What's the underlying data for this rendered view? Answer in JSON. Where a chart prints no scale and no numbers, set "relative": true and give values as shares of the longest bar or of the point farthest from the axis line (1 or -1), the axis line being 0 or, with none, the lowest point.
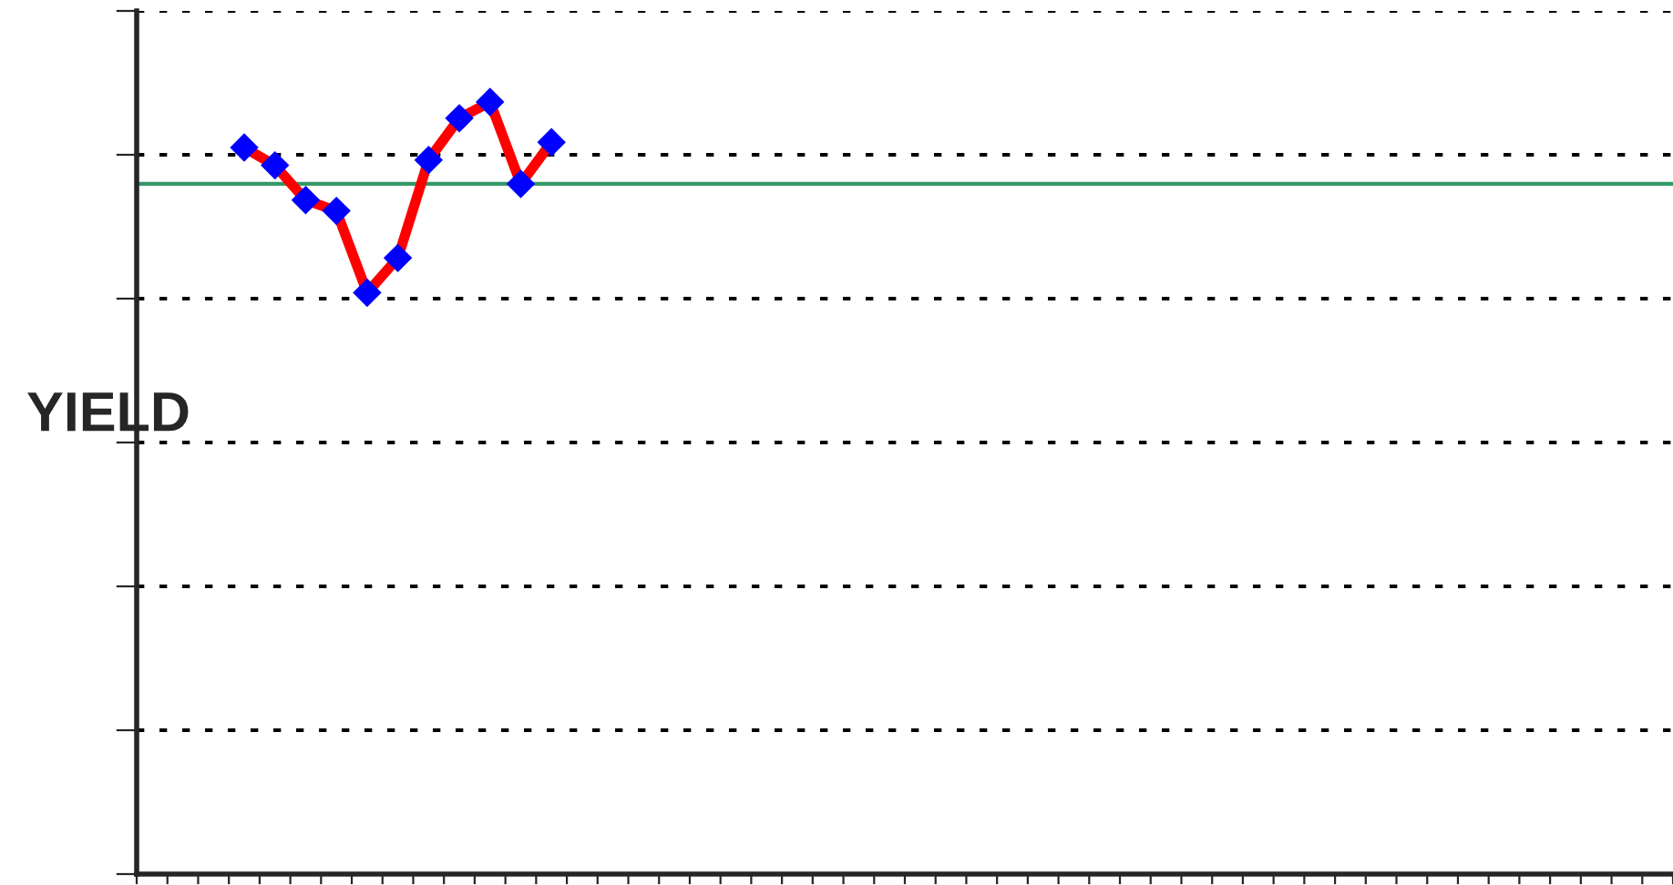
{
  "chart_data": {
    "type": "line",
    "ylabel": "YIELD",
    "relative": true,
    "categories": [
      null,
      null,
      null,
      null,
      null,
      null,
      null,
      null,
      null,
      null,
      null,
      null,
      null,
      null,
      null,
      null,
      null,
      null,
      null,
      null,
      null,
      null,
      null,
      null,
      null,
      null,
      null,
      null,
      null,
      null,
      null,
      null,
      null,
      null,
      null,
      null,
      null,
      null,
      null,
      null,
      null,
      null,
      null,
      null,
      null,
      null,
      null,
      null,
      null,
      null
    ],
    "series": [
      {
        "color": "#ff0000",
        "values": [
          null,
          null,
          null,
          0.941,
          0.918,
          0.873,
          0.859,
          0.753,
          0.798,
          0.925,
          0.979,
          1,
          0.894,
          0.948,
          null,
          null,
          null,
          null,
          null,
          null,
          null,
          null,
          null,
          null,
          null,
          null,
          null,
          null,
          null,
          null,
          null,
          null,
          null,
          null,
          null,
          null,
          null,
          null,
          null,
          null,
          null,
          null,
          null,
          null,
          null,
          null,
          null,
          null,
          null,
          null
        ]
      }
    ],
    "marker": "diamond",
    "line_style": "solid",
    "grid": "y",
    "tick_labels": false,
    "ref_lines": [
      {
        "axis": "y",
        "value": 0.894,
        "color": "#339966"
      }
    ]
  }
}
